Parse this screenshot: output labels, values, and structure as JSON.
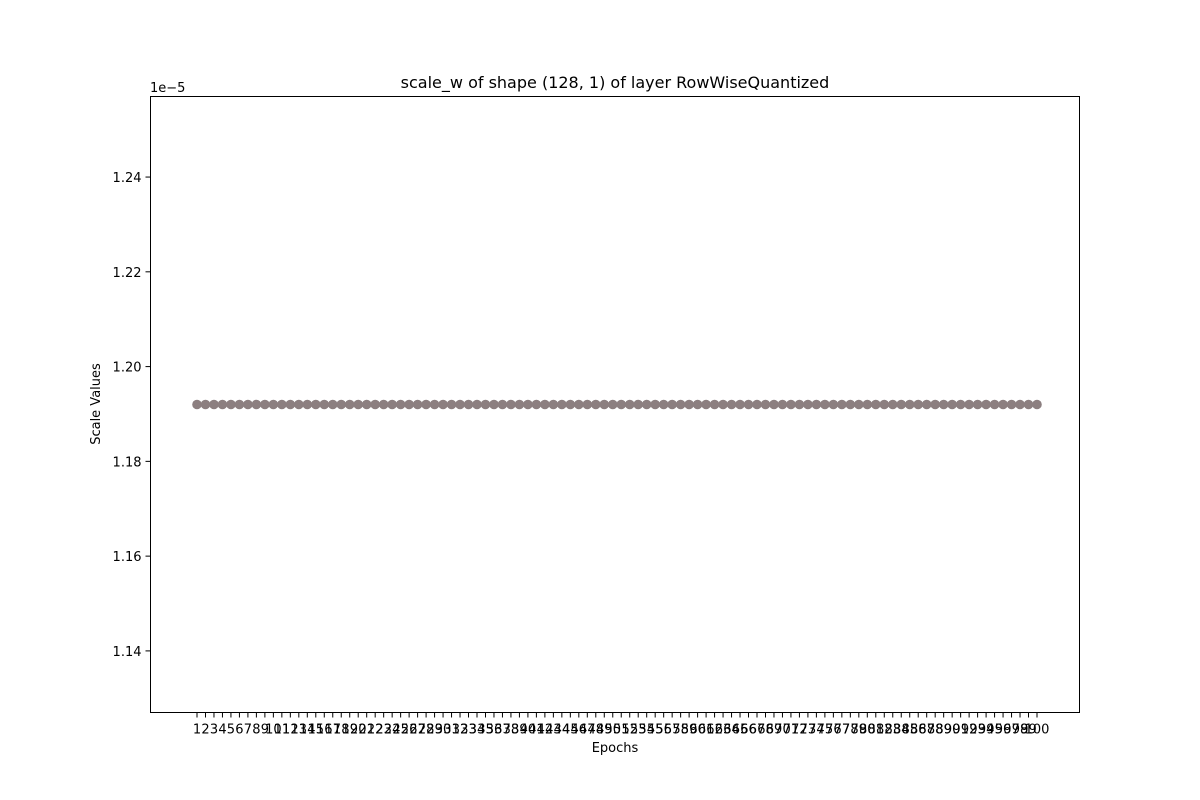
{
  "chart_data": {
    "type": "scatter",
    "title": "scale_w of shape (128, 1) of layer RowWiseQuantized",
    "xlabel": "Epochs",
    "ylabel": "Scale Values",
    "y_offset_label": "1e−5",
    "y_scale_factor": 1e-05,
    "ylim": [
      1.127,
      1.257
    ],
    "yticks": [
      1.14,
      1.16,
      1.18,
      1.2,
      1.22,
      1.24
    ],
    "ytick_labels": [
      "1.14",
      "1.16",
      "1.18",
      "1.20",
      "1.22",
      "1.24"
    ],
    "x_categories_start": 1,
    "x_categories_end": 100,
    "value_per_epoch": 1.192,
    "marker_color": "#8c7f80",
    "grid": false,
    "legend": "none"
  }
}
